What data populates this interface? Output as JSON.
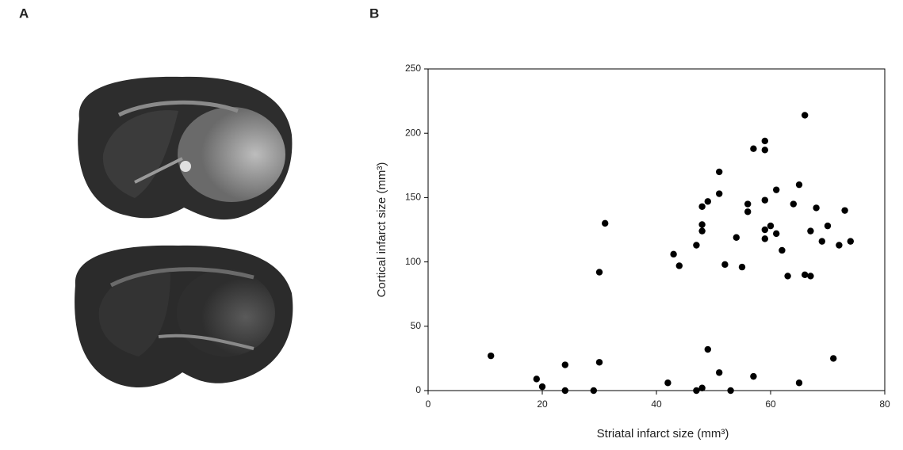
{
  "panel_labels": [
    "A",
    "B"
  ],
  "chart_data": {
    "type": "scatter",
    "x_label": "Striatal infarct size (mm³)",
    "y_label": "Cortical infarct size (mm³)",
    "color": "#000000",
    "x": [
      11,
      19,
      20,
      24,
      24,
      31,
      30,
      29,
      30,
      42,
      43,
      44,
      47,
      47,
      48,
      48,
      48,
      48,
      49,
      49,
      51,
      51,
      51,
      52,
      53,
      54,
      55,
      56,
      56,
      57,
      57,
      59,
      59,
      59,
      59,
      59,
      60,
      61,
      61,
      62,
      63,
      64,
      65,
      65,
      66,
      66,
      67,
      67,
      68,
      69,
      70,
      71,
      72,
      73,
      74
    ],
    "values": [
      27,
      9,
      3,
      20,
      0,
      130,
      92,
      0,
      22,
      6,
      106,
      97,
      0,
      113,
      2,
      143,
      129,
      124,
      147,
      32,
      170,
      153,
      14,
      98,
      0,
      119,
      96,
      145,
      139,
      188,
      11,
      194,
      187,
      148,
      125,
      118,
      128,
      156,
      122,
      109,
      89,
      145,
      160,
      6,
      214,
      90,
      124,
      89,
      142,
      116,
      128,
      25,
      113,
      140,
      116
    ],
    "xlim": [
      0,
      80
    ],
    "xticks": [
      0,
      20,
      40,
      60,
      80
    ],
    "ylim": [
      0,
      250
    ],
    "yticks": [
      0,
      50,
      100,
      150,
      200,
      250
    ]
  }
}
